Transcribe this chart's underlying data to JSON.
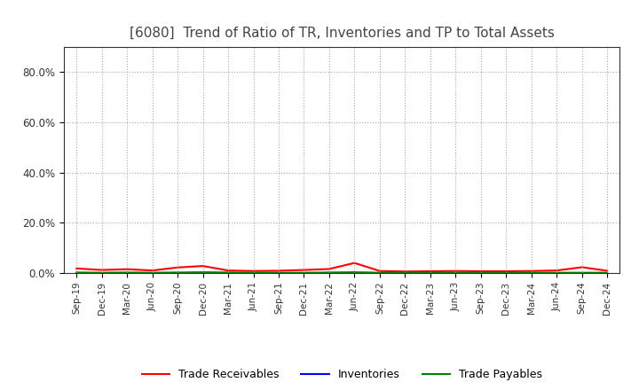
{
  "title": "[6080]  Trend of Ratio of TR, Inventories and TP to Total Assets",
  "title_fontsize": 11,
  "x_labels": [
    "Sep-19",
    "Dec-19",
    "Mar-20",
    "Jun-20",
    "Sep-20",
    "Dec-20",
    "Mar-21",
    "Jun-21",
    "Sep-21",
    "Dec-21",
    "Mar-22",
    "Jun-22",
    "Sep-22",
    "Dec-22",
    "Mar-23",
    "Jun-23",
    "Sep-23",
    "Dec-23",
    "Mar-24",
    "Jun-24",
    "Sep-24",
    "Dec-24"
  ],
  "trade_receivables": [
    0.018,
    0.012,
    0.015,
    0.01,
    0.022,
    0.028,
    0.01,
    0.008,
    0.009,
    0.012,
    0.016,
    0.04,
    0.008,
    0.006,
    0.007,
    0.008,
    0.007,
    0.007,
    0.008,
    0.01,
    0.023,
    0.009
  ],
  "inventories": [
    0.001,
    0.001,
    0.001,
    0.001,
    0.001,
    0.001,
    0.001,
    0.001,
    0.001,
    0.001,
    0.001,
    0.001,
    0.001,
    0.001,
    0.001,
    0.001,
    0.001,
    0.001,
    0.001,
    0.001,
    0.001,
    0.001
  ],
  "trade_payables": [
    0.002,
    0.001,
    0.002,
    0.001,
    0.002,
    0.003,
    0.002,
    0.001,
    0.001,
    0.001,
    0.002,
    0.003,
    0.001,
    0.001,
    0.001,
    0.001,
    0.001,
    0.001,
    0.001,
    0.001,
    0.001,
    0.001
  ],
  "tr_color": "#ff0000",
  "inv_color": "#0000ff",
  "tp_color": "#008000",
  "line_width": 1.5,
  "legend_labels": [
    "Trade Receivables",
    "Inventories",
    "Trade Payables"
  ],
  "ylim": [
    0.0,
    0.9
  ],
  "yticks": [
    0.0,
    0.2,
    0.4,
    0.6,
    0.8
  ],
  "ytick_labels": [
    "0.0%",
    "20.0%",
    "40.0%",
    "60.0%",
    "80.0%"
  ],
  "background_color": "#ffffff",
  "grid_color": "#aaaaaa"
}
